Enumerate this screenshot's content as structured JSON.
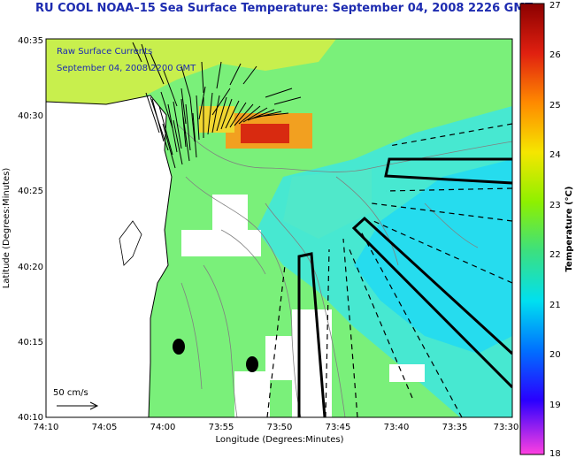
{
  "title": "RU COOL  NOAA–15  Sea Surface Temperature:  September 04, 2008 2226 GMT",
  "overlay": {
    "line1": "Raw Surface Currents",
    "line2": "September 04, 2008 2200 GMT"
  },
  "axes": {
    "xlabel": "Longitude (Degrees:Minutes)",
    "ylabel": "Latitude (Degrees:Minutes)",
    "x_ticks": [
      "74:10",
      "74:05",
      "74:00",
      "73:55",
      "73:50",
      "73:45",
      "73:40",
      "73:35",
      "73:30"
    ],
    "y_ticks": [
      "40:35",
      "40:30",
      "40:25",
      "40:20",
      "40:15",
      "40:10"
    ]
  },
  "scale_label": "50 cm/s",
  "colorbar": {
    "label": "Temperature (°C)",
    "ticks": [
      "27",
      "26",
      "25",
      "24",
      "23",
      "22",
      "21",
      "20",
      "19",
      "18"
    ],
    "min": 18,
    "max": 27
  },
  "colors": {
    "title": "#1d2bb0",
    "overlay_text": "#1d2bb0",
    "water_main": "#6ef26e",
    "water_cyan": "#2ee8e8",
    "land": "#ffffff",
    "hot": "#e8401c"
  }
}
